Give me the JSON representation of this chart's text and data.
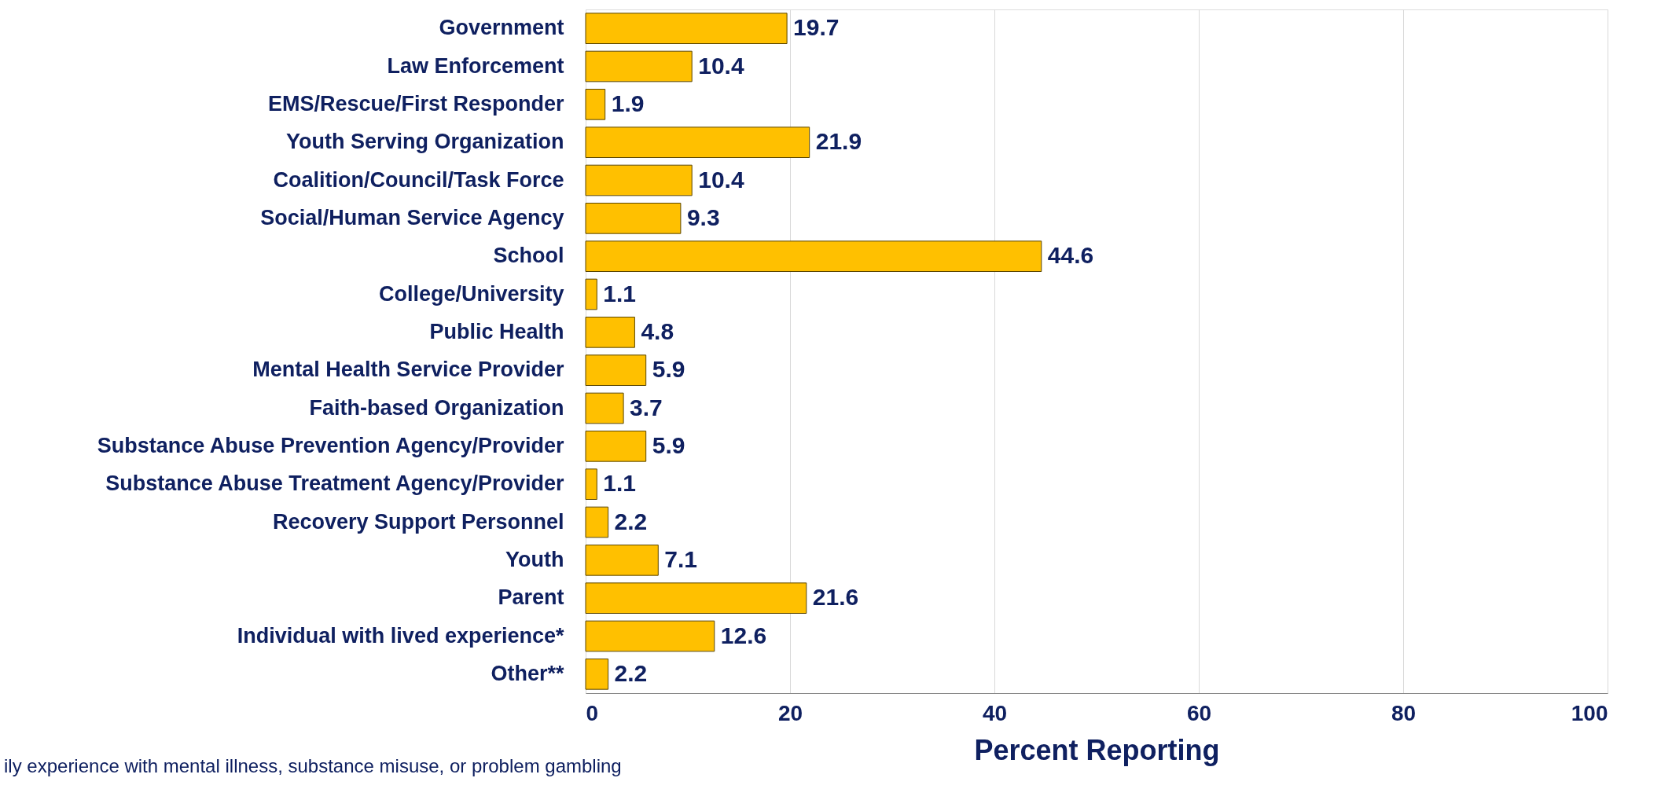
{
  "chart_data": {
    "type": "bar",
    "orientation": "horizontal",
    "xlabel": "Percent Reporting",
    "categories": [
      "Government",
      "Law Enforcement",
      "EMS/Rescue/First Responder",
      "Youth Serving Organization",
      "Coalition/Council/Task Force",
      "Social/Human Service Agency",
      "School",
      "College/University",
      "Public Health",
      "Mental Health Service Provider",
      "Faith-based Organization",
      "Substance Abuse Prevention Agency/Provider",
      "Substance Abuse Treatment Agency/Provider",
      "Recovery Support Personnel",
      "Youth ",
      "Parent",
      "Individual with lived experience*",
      "Other**"
    ],
    "values": [
      19.7,
      10.4,
      1.9,
      21.9,
      10.4,
      9.3,
      44.6,
      1.1,
      4.8,
      5.9,
      3.7,
      5.9,
      1.1,
      2.2,
      7.1,
      21.6,
      12.6,
      2.2
    ],
    "color": "#ffc000",
    "xlim": [
      0,
      100
    ],
    "xticks": [
      0,
      20,
      40,
      60,
      80,
      100
    ],
    "grid": "x",
    "data_labels": true,
    "annotations": [
      "ily experience with mental illness, substance misuse, or problem gambling"
    ]
  }
}
